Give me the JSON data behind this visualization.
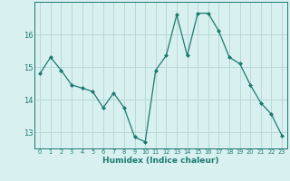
{
  "x": [
    0,
    1,
    2,
    3,
    4,
    5,
    6,
    7,
    8,
    9,
    10,
    11,
    12,
    13,
    14,
    15,
    16,
    17,
    18,
    19,
    20,
    21,
    22,
    23
  ],
  "y": [
    14.8,
    15.3,
    14.9,
    14.45,
    14.35,
    14.25,
    13.75,
    14.2,
    13.75,
    12.85,
    12.7,
    14.9,
    15.35,
    16.6,
    15.35,
    16.65,
    16.65,
    16.1,
    15.3,
    15.1,
    14.45,
    13.9,
    13.55,
    12.9
  ],
  "line_color": "#1a7a6e",
  "marker": "D",
  "marker_size": 2.0,
  "bg_color": "#d9f0f0",
  "grid_color": "#b8d8d8",
  "xlabel": "Humidex (Indice chaleur)",
  "ylim": [
    12.5,
    17.0
  ],
  "yticks": [
    13,
    14,
    15,
    16
  ],
  "xticks": [
    0,
    1,
    2,
    3,
    4,
    5,
    6,
    7,
    8,
    9,
    10,
    11,
    12,
    13,
    14,
    15,
    16,
    17,
    18,
    19,
    20,
    21,
    22,
    23
  ],
  "tick_color": "#1a7a6e",
  "label_color": "#1a7a6e"
}
